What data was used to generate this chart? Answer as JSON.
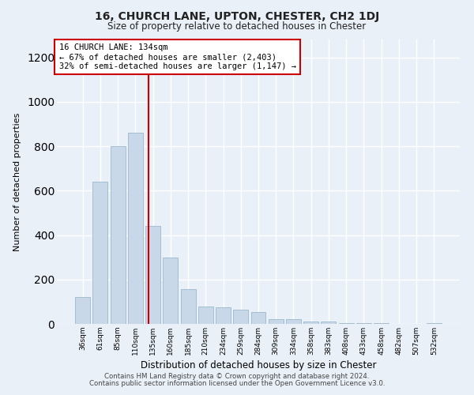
{
  "title1": "16, CHURCH LANE, UPTON, CHESTER, CH2 1DJ",
  "title2": "Size of property relative to detached houses in Chester",
  "xlabel": "Distribution of detached houses by size in Chester",
  "ylabel": "Number of detached properties",
  "bar_labels": [
    "36sqm",
    "61sqm",
    "85sqm",
    "110sqm",
    "135sqm",
    "160sqm",
    "185sqm",
    "210sqm",
    "234sqm",
    "259sqm",
    "284sqm",
    "309sqm",
    "334sqm",
    "358sqm",
    "383sqm",
    "408sqm",
    "433sqm",
    "458sqm",
    "482sqm",
    "507sqm",
    "532sqm"
  ],
  "bar_heights": [
    120,
    640,
    800,
    860,
    440,
    300,
    155,
    80,
    75,
    65,
    55,
    20,
    20,
    10,
    10,
    5,
    5,
    5,
    0,
    0,
    5
  ],
  "bar_color": "#c8d8e8",
  "bar_edge_color": "#9ab8cc",
  "vline_x_index": 3.75,
  "vline_color": "#cc0000",
  "annotation_text": "16 CHURCH LANE: 134sqm\n← 67% of detached houses are smaller (2,403)\n32% of semi-detached houses are larger (1,147) →",
  "annotation_box_color": "#ffffff",
  "annotation_box_edge": "#cc0000",
  "ylim": [
    0,
    1280
  ],
  "yticks": [
    0,
    200,
    400,
    600,
    800,
    1000,
    1200
  ],
  "footer1": "Contains HM Land Registry data © Crown copyright and database right 2024.",
  "footer2": "Contains public sector information licensed under the Open Government Licence v3.0.",
  "bg_color": "#eaf0f8",
  "plot_bg_color": "#eaf0f8"
}
